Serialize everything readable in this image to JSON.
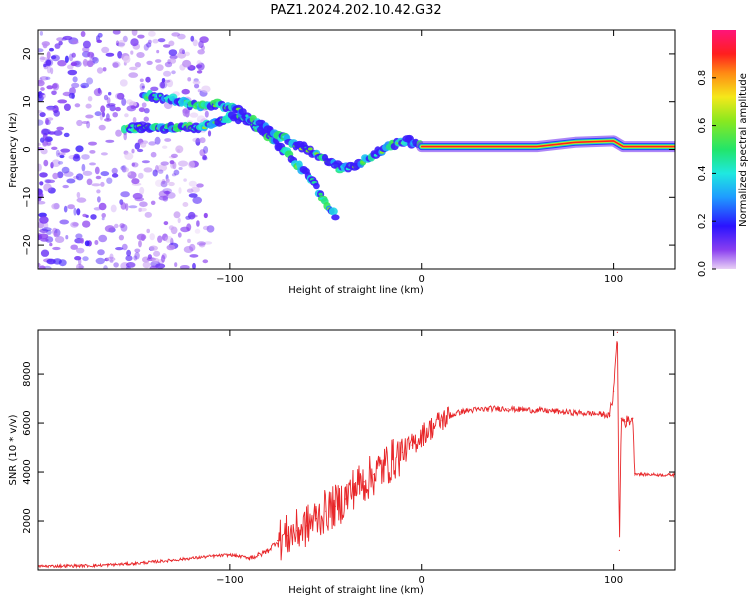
{
  "figure": {
    "title": "PAZ1.2024.202.10.42.G32"
  },
  "chart_data": [
    {
      "type": "heatmap",
      "xlabel": "Height of straight line (km)",
      "ylabel": "Frequency (Hz)",
      "xlim": [
        -200,
        132
      ],
      "ylim": [
        -25,
        25
      ],
      "xticks": [
        -100,
        0,
        100
      ],
      "yticks": [
        -20,
        -10,
        0,
        10,
        20
      ],
      "colorbar": {
        "label": "Normalized spectral amplitude",
        "range": [
          0,
          1
        ],
        "ticks": [
          0.0,
          0.2,
          0.4,
          0.6,
          0.8
        ],
        "colormap": "rainbow (purple-blue-cyan-green-yellow-red-magenta)"
      },
      "features": [
        {
          "name": "branch",
          "points": [
            [
              -155,
              4.5
            ],
            [
              -140,
              4.5
            ],
            [
              -125,
              4.5
            ],
            [
              -110,
              5.0
            ],
            [
              -100,
              7.0
            ],
            [
              -90,
              6.0
            ],
            [
              -80,
              3.0
            ],
            [
              -72,
              0.0
            ],
            [
              -65,
              -3.0
            ],
            [
              -58,
              -6.0
            ],
            [
              -52,
              -10.0
            ],
            [
              -45,
              -14.0
            ]
          ]
        },
        {
          "name": "branch",
          "points": [
            [
              -145,
              11.5
            ],
            [
              -130,
              10.5
            ],
            [
              -115,
              9.0
            ],
            [
              -105,
              9.5
            ],
            [
              -95,
              8.0
            ],
            [
              -85,
              5.5
            ],
            [
              -75,
              3.0
            ],
            [
              -60,
              0.0
            ],
            [
              -50,
              -2.0
            ],
            [
              -42,
              -4.0
            ],
            [
              -35,
              -3.5
            ],
            [
              -25,
              -1.0
            ],
            [
              -15,
              1.0
            ],
            [
              -8,
              2.0
            ],
            [
              0,
              0.6
            ]
          ]
        },
        {
          "name": "carrier",
          "points": [
            [
              0,
              0.6
            ],
            [
              60,
              0.6
            ],
            [
              80,
              1.5
            ],
            [
              100,
              1.8
            ],
            [
              105,
              0.6
            ],
            [
              132,
              0.6
            ]
          ]
        }
      ]
    },
    {
      "type": "line",
      "xlabel": "Height of straight line (km)",
      "ylabel": "SNR (10 * v/v)",
      "xlim": [
        -200,
        132
      ],
      "ylim": [
        0,
        9800
      ],
      "xticks": [
        -100,
        0,
        100
      ],
      "yticks": [
        2000,
        4000,
        6000,
        8000
      ],
      "series": [
        {
          "color": "#e8272a",
          "x": [
            -200,
            -190,
            -180,
            -170,
            -160,
            -150,
            -140,
            -130,
            -120,
            -110,
            -100,
            -95,
            -90,
            -85,
            -80,
            -75,
            -70,
            -65,
            -60,
            -55,
            -50,
            -45,
            -40,
            -35,
            -30,
            -25,
            -20,
            -15,
            -10,
            -5,
            0,
            5,
            10,
            15,
            20,
            25,
            30,
            35,
            40,
            45,
            50,
            55,
            60,
            65,
            70,
            75,
            80,
            85,
            90,
            95,
            98,
            100,
            102,
            103,
            104,
            106,
            108,
            110,
            111,
            115,
            120,
            125,
            132
          ],
          "y": [
            150,
            160,
            170,
            180,
            220,
            260,
            330,
            400,
            480,
            560,
            620,
            560,
            500,
            600,
            800,
            1200,
            1400,
            1600,
            1800,
            2100,
            2400,
            2600,
            2900,
            3400,
            3600,
            3900,
            4200,
            4500,
            4800,
            5100,
            5500,
            5800,
            6100,
            6300,
            6450,
            6520,
            6550,
            6580,
            6600,
            6580,
            6560,
            6540,
            6520,
            6500,
            6480,
            6440,
            6420,
            6400,
            6380,
            6350,
            6300,
            7300,
            9700,
            800,
            6200,
            6050,
            6100,
            6200,
            3950,
            3900,
            3900,
            3880,
            3880
          ]
        }
      ]
    }
  ]
}
